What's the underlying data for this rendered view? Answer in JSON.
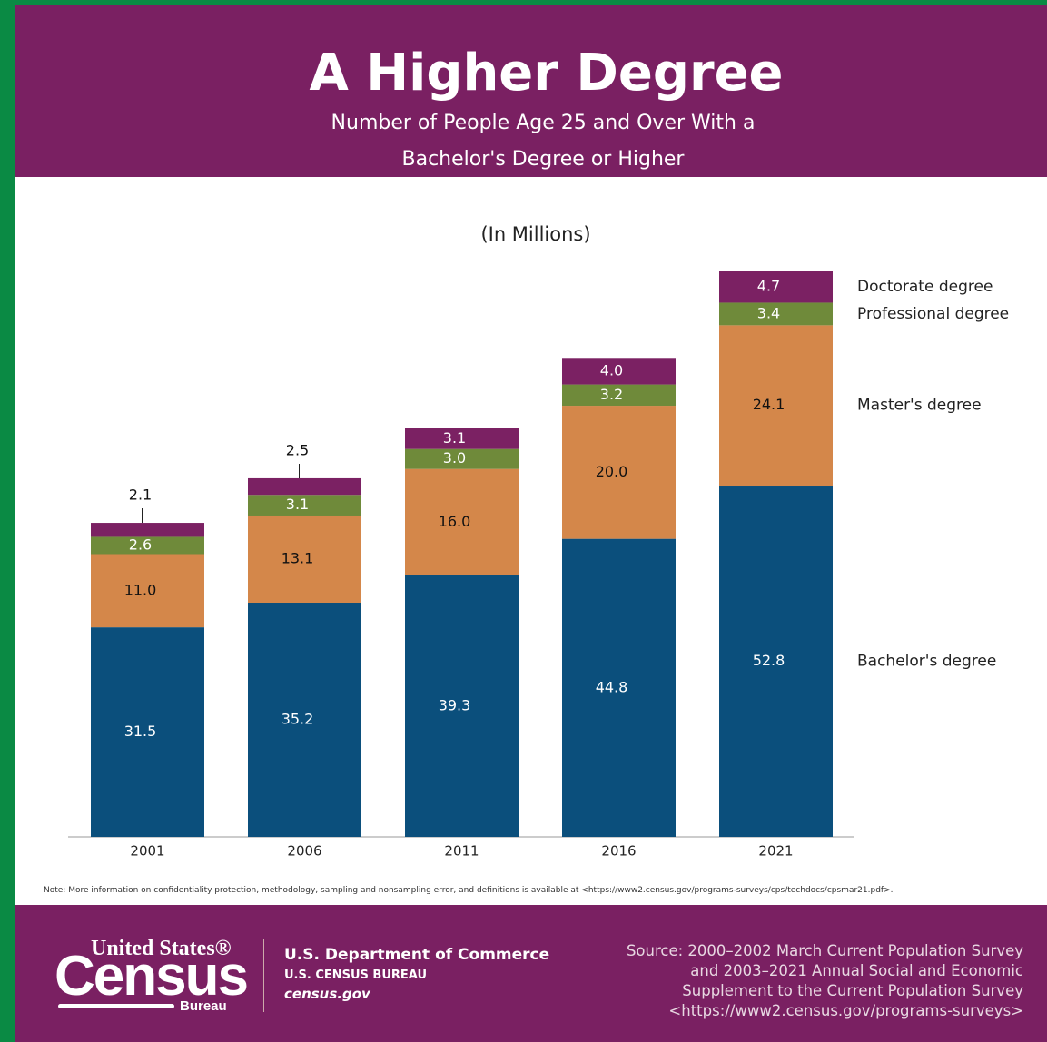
{
  "chart_data": {
    "type": "stacked_bar",
    "title": "A Higher Degree",
    "subtitle": "Number of People Age 25 and Over With a Bachelor's Degree or Higher",
    "unit_label": "(In Millions)",
    "categories": [
      "2001",
      "2006",
      "2011",
      "2016",
      "2021"
    ],
    "series": [
      {
        "name": "Bachelor's degree",
        "color": "#0b4f7c",
        "values": [
          31.5,
          35.2,
          39.3,
          44.8,
          52.8
        ],
        "value_labels": [
          "31.5",
          "35.2",
          "39.3",
          "44.8",
          "52.8"
        ]
      },
      {
        "name": "Master's degree",
        "color": "#d4874a",
        "values": [
          11.0,
          13.1,
          16.0,
          20.0,
          24.1
        ],
        "value_labels": [
          "11.0",
          "13.1",
          "16.0",
          "20.0",
          "24.1"
        ]
      },
      {
        "name": "Professional degree",
        "color": "#6f8a3a",
        "values": [
          2.6,
          3.1,
          3.0,
          3.2,
          3.4
        ],
        "value_labels": [
          "2.6",
          "3.1",
          "3.0",
          "3.2",
          "3.4"
        ]
      },
      {
        "name": "Doctorate degree",
        "color": "#7b2163",
        "values": [
          2.1,
          2.5,
          3.1,
          4.0,
          4.7
        ],
        "value_labels": [
          "2.1",
          "2.5",
          "3.1",
          "4.0",
          "4.7"
        ]
      }
    ],
    "note": "Note: More information on confidentiality protection, methodology, sampling and nonsampling error, and definitions is available at <https://www2.census.gov/programs-surveys/cps/techdocs/cpsmar21.pdf>.",
    "footer": {
      "logo": [
        "United States®",
        "Census",
        "Bureau"
      ],
      "department": "U.S. Department of Commerce",
      "bureau": "U.S. CENSUS BUREAU",
      "website": "census.gov",
      "source": [
        "Source: 2000–2002 March Current Population Survey",
        "and 2003–2021 Annual Social and Economic",
        "Supplement to the Current Population Survey",
        "<https://www2.census.gov/programs-surveys>"
      ]
    }
  }
}
